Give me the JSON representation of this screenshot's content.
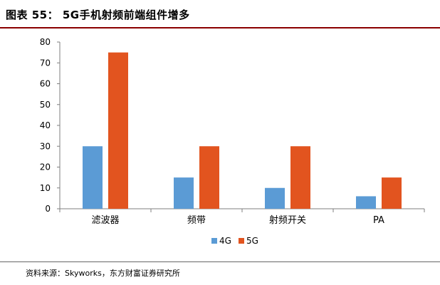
{
  "header": {
    "title": "图表 55： 5G手机射频前端组件增多"
  },
  "footer": {
    "source": "资料来源：Skyworks，东方财富证券研究所"
  },
  "colors": {
    "series_4g": "#5b9bd5",
    "series_5g": "#e2541f",
    "axis": "#7f7f7f",
    "title_rule": "#8b0000"
  },
  "chart_data": {
    "type": "bar",
    "categories": [
      "滤波器",
      "频带",
      "射频开关",
      "PA"
    ],
    "series": [
      {
        "name": "4G",
        "values": [
          30,
          15,
          10,
          6
        ]
      },
      {
        "name": "5G",
        "values": [
          75,
          30,
          30,
          15
        ]
      }
    ],
    "ylim": [
      0,
      80
    ],
    "yticks": [
      0,
      10,
      20,
      30,
      40,
      50,
      60,
      70,
      80
    ],
    "xlabel": "",
    "ylabel": "",
    "grid": false,
    "legend": "bottom-center"
  }
}
